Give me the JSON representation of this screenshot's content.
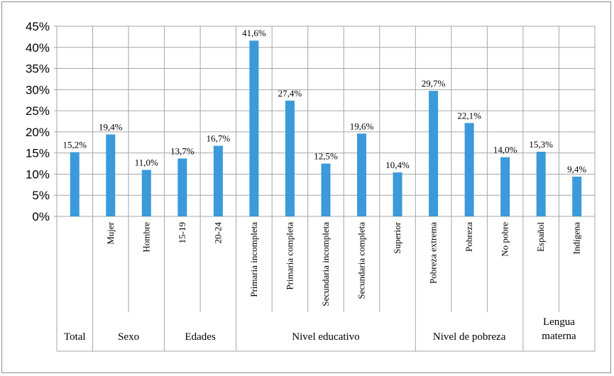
{
  "chart_data": {
    "type": "bar",
    "categories": [
      "",
      "Mujer",
      "Hombre",
      "15-19",
      "20-24",
      "Primaria incompleta",
      "Primaria completa",
      "Secundaria incompleta",
      "Secundaria completa",
      "Superior",
      "Pobreza extrema",
      "Pobreza",
      "No pobre",
      "Español",
      "Indígena"
    ],
    "values": [
      15.2,
      19.4,
      11.0,
      13.7,
      16.7,
      41.6,
      27.4,
      12.5,
      19.6,
      10.4,
      29.7,
      22.1,
      14.0,
      15.3,
      9.4
    ],
    "data_labels": [
      "15,2%",
      "19,4%",
      "11,0%",
      "13,7%",
      "16,7%",
      "41,6%",
      "27,4%",
      "12,5%",
      "19,6%",
      "10,4%",
      "29,7%",
      "22,1%",
      "14,0%",
      "15,3%",
      "9,4%"
    ],
    "groups": [
      {
        "label": "Total",
        "count": 1
      },
      {
        "label": "Sexo",
        "count": 2
      },
      {
        "label": "Edades",
        "count": 2
      },
      {
        "label": "Nivel educativo",
        "count": 5
      },
      {
        "label": "Nivel de pobreza",
        "count": 3
      },
      {
        "label": "Lengua materna",
        "count": 2
      }
    ],
    "yticks": [
      "0%",
      "5%",
      "10%",
      "15%",
      "20%",
      "25%",
      "30%",
      "35%",
      "40%",
      "45%"
    ],
    "ylim": [
      0,
      45
    ],
    "title": "",
    "xlabel": "",
    "ylabel": "",
    "grid": true,
    "legend": "none",
    "bar_color": "#3b9ad9",
    "grid_color": "#a6a6a6"
  }
}
